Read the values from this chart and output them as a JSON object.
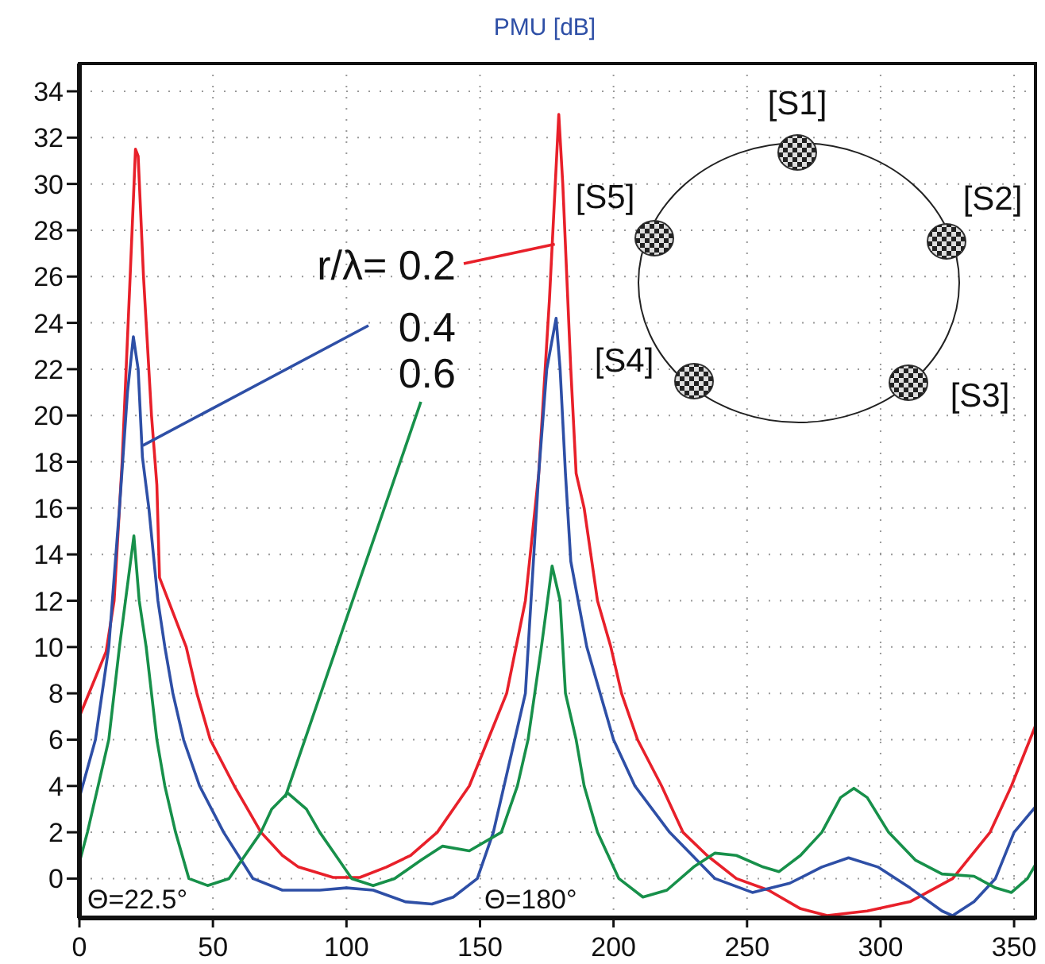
{
  "chart_data": {
    "type": "line",
    "title": "PMU [dB]",
    "xlim": [
      0,
      358
    ],
    "xticks": [
      0,
      50,
      100,
      150,
      200,
      250,
      300,
      350
    ],
    "ylim": [
      -1.7,
      35.2
    ],
    "yticks": [
      0,
      2,
      4,
      6,
      8,
      10,
      12,
      14,
      16,
      18,
      20,
      22,
      24,
      26,
      28,
      30,
      32,
      34
    ],
    "grid": true,
    "legend": "top",
    "marker": "none",
    "line_style": "solid",
    "annotations": [
      "Θ=22.5°",
      "Θ=180°",
      "[S1]",
      "[S2]",
      "[S3]",
      "[S4]",
      "[S5]"
    ],
    "series": [
      {
        "name": "r/λ= 0.2",
        "color": "#e8202a",
        "x": [
          0,
          5,
          10,
          13,
          16,
          19,
          21,
          22,
          24,
          27,
          29,
          30,
          35,
          40,
          44,
          49,
          58,
          68,
          76,
          82,
          95,
          105,
          115,
          124,
          134,
          146,
          153,
          160,
          167,
          172,
          176,
          179.5,
          181,
          184,
          186,
          189,
          194,
          199,
          203,
          209,
          218,
          226,
          235,
          246,
          258,
          270,
          280,
          295,
          311,
          327,
          341,
          349,
          358
        ],
        "values": [
          7.0,
          8.4,
          9.8,
          12,
          18,
          26,
          31.5,
          31.2,
          26,
          20,
          17,
          13,
          11.5,
          10,
          8,
          6,
          4,
          2,
          1,
          0.5,
          0.05,
          0.05,
          0.5,
          1,
          2,
          4,
          6,
          8,
          12,
          17.5,
          25,
          33,
          30,
          22,
          17.5,
          16,
          12,
          10,
          8,
          6,
          4,
          2,
          1,
          0,
          -0.5,
          -1.3,
          -1.6,
          -1.4,
          -1,
          0,
          2,
          4,
          6.6
        ]
      },
      {
        "name": "0.4",
        "color": "#2e4fa6",
        "x": [
          0,
          6,
          11,
          15,
          18,
          20.2,
          22,
          23.6,
          26,
          29.4,
          32,
          35,
          39,
          45,
          54,
          65,
          76,
          90,
          100,
          110,
          122,
          132,
          140,
          149,
          155,
          159,
          163,
          167,
          172,
          175,
          178.5,
          180,
          182,
          184,
          190,
          195,
          200,
          208,
          221,
          238,
          252,
          266,
          278,
          288,
          299,
          311,
          323,
          327,
          335,
          343,
          350,
          358
        ],
        "values": [
          3.5,
          6,
          10,
          16,
          21,
          23.4,
          22,
          18.2,
          16,
          12,
          10,
          8,
          6,
          4,
          2,
          0,
          -0.5,
          -0.5,
          -0.4,
          -0.5,
          -1,
          -1.1,
          -0.8,
          0,
          2,
          4,
          6,
          8,
          17.5,
          22,
          24.2,
          22,
          17.5,
          13.7,
          10,
          8,
          6,
          4,
          2,
          0,
          -0.6,
          -0.2,
          0.5,
          0.9,
          0.5,
          -0.4,
          -1.4,
          -1.6,
          -1,
          0,
          2,
          3.1
        ]
      },
      {
        "name": "0.6",
        "color": "#17904a",
        "x": [
          0,
          3,
          7,
          11,
          15,
          20.4,
          22.4,
          25,
          29,
          32,
          36,
          41,
          48,
          56,
          62,
          68,
          72,
          78,
          85,
          90,
          96,
          102,
          110,
          118,
          128,
          136,
          146,
          158,
          164,
          168,
          173,
          177,
          180,
          182,
          186,
          189,
          194,
          202,
          211,
          220,
          230,
          238,
          246,
          256,
          262,
          270,
          278,
          285,
          290,
          295,
          303,
          313,
          323,
          335,
          343,
          349,
          355,
          358
        ],
        "values": [
          0.7,
          2,
          4,
          6,
          10,
          14.8,
          12,
          10,
          6,
          4,
          2,
          0,
          -0.3,
          0,
          1,
          2,
          3,
          3.7,
          3,
          2,
          1,
          0,
          -0.3,
          0,
          0.8,
          1.4,
          1.2,
          2,
          4,
          6,
          10,
          13.5,
          12,
          8,
          6,
          4,
          2,
          0,
          -0.8,
          -0.5,
          0.5,
          1.1,
          1.0,
          0.5,
          0.3,
          1,
          2,
          3.5,
          3.9,
          3.5,
          2,
          0.8,
          0.2,
          0.1,
          -0.4,
          -0.6,
          0,
          0.6
        ]
      }
    ]
  }
}
